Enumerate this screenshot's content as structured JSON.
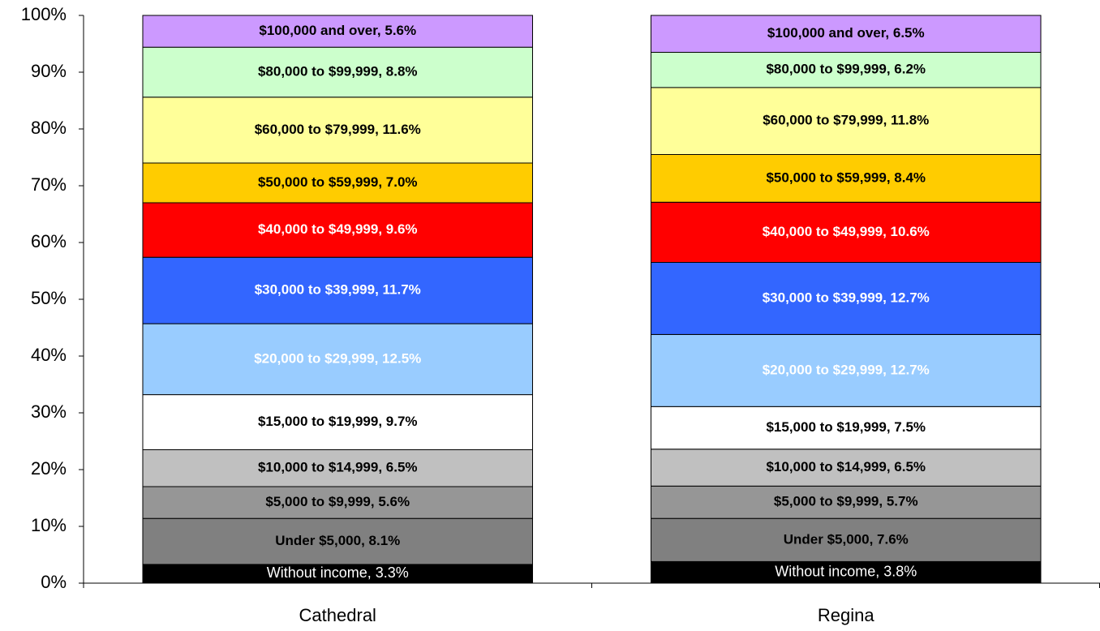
{
  "chart_data": {
    "type": "stacked_bar_100",
    "categories": [
      "Cathedral",
      "Regina"
    ],
    "ylim": [
      0,
      100
    ],
    "yticks": [
      {
        "value": 0,
        "label": "0%"
      },
      {
        "value": 10,
        "label": "10%"
      },
      {
        "value": 20,
        "label": "20%"
      },
      {
        "value": 30,
        "label": "30%"
      },
      {
        "value": 40,
        "label": "40%"
      },
      {
        "value": 50,
        "label": "50%"
      },
      {
        "value": 60,
        "label": "60%"
      },
      {
        "value": 70,
        "label": "70%"
      },
      {
        "value": 80,
        "label": "80%"
      },
      {
        "value": 90,
        "label": "90%"
      },
      {
        "value": 100,
        "label": "100%"
      }
    ],
    "series": [
      {
        "name": "Without income",
        "color": "#000000",
        "label_color": "#ffffff",
        "label_bold": false,
        "values": [
          3.3,
          3.8
        ],
        "value_labels": [
          "Without income, 3.3%",
          "Without income, 3.8%"
        ]
      },
      {
        "name": "Under $5,000",
        "color": "#808080",
        "label_color": "#000000",
        "label_bold": true,
        "values": [
          8.1,
          7.6
        ],
        "value_labels": [
          "Under $5,000, 8.1%",
          "Under $5,000, 7.6%"
        ]
      },
      {
        "name": "$5,000 to $9,999",
        "color": "#969696",
        "label_color": "#000000",
        "label_bold": true,
        "values": [
          5.6,
          5.7
        ],
        "value_labels": [
          "$5,000 to $9,999, 5.6%",
          "$5,000 to $9,999, 5.7%"
        ]
      },
      {
        "name": "$10,000 to $14,999",
        "color": "#c0c0c0",
        "label_color": "#000000",
        "label_bold": true,
        "values": [
          6.5,
          6.5
        ],
        "value_labels": [
          "$10,000 to $14,999, 6.5%",
          "$10,000 to $14,999, 6.5%"
        ]
      },
      {
        "name": "$15,000 to $19,999",
        "color": "#ffffff",
        "label_color": "#000000",
        "label_bold": true,
        "values": [
          9.7,
          7.5
        ],
        "value_labels": [
          "$15,000 to $19,999, 9.7%",
          "$15,000 to $19,999, 7.5%"
        ]
      },
      {
        "name": "$20,000 to $29,999",
        "color": "#99ccff",
        "label_color": "#ffffff",
        "label_bold": true,
        "values": [
          12.5,
          12.7
        ],
        "value_labels": [
          "$20,000 to $29,999, 12.5%",
          "$20,000 to $29,999, 12.7%"
        ]
      },
      {
        "name": "$30,000 to $39,999",
        "color": "#3366ff",
        "label_color": "#ffffff",
        "label_bold": true,
        "values": [
          11.7,
          12.7
        ],
        "value_labels": [
          "$30,000 to $39,999, 11.7%",
          "$30,000 to $39,999, 12.7%"
        ]
      },
      {
        "name": "$40,000 to $49,999",
        "color": "#ff0000",
        "label_color": "#ffffff",
        "label_bold": true,
        "values": [
          9.6,
          10.6
        ],
        "value_labels": [
          "$40,000 to $49,999, 9.6%",
          "$40,000 to $49,999, 10.6%"
        ]
      },
      {
        "name": "$50,000 to $59,999",
        "color": "#ffcc00",
        "label_color": "#000000",
        "label_bold": true,
        "values": [
          7.0,
          8.4
        ],
        "value_labels": [
          "$50,000 to $59,999, 7.0%",
          "$50,000 to $59,999, 8.4%"
        ]
      },
      {
        "name": "$60,000 to $79,999",
        "color": "#ffff99",
        "label_color": "#000000",
        "label_bold": true,
        "values": [
          11.6,
          11.8
        ],
        "value_labels": [
          "$60,000 to $79,999, 11.6%",
          "$60,000 to $79,999, 11.8%"
        ]
      },
      {
        "name": "$80,000 to $99,999",
        "color": "#ccffcc",
        "label_color": "#000000",
        "label_bold": true,
        "values": [
          8.8,
          6.2
        ],
        "value_labels": [
          "$80,000 to $99,999, 8.8%",
          "$80,000 to $99,999, 6.2%"
        ]
      },
      {
        "name": "$100,000 and over",
        "color": "#cc99ff",
        "label_color": "#000000",
        "label_bold": true,
        "values": [
          5.6,
          6.5
        ],
        "value_labels": [
          "$100,000 and over, 5.6%",
          "$100,000 and over, 6.5%"
        ]
      }
    ]
  }
}
